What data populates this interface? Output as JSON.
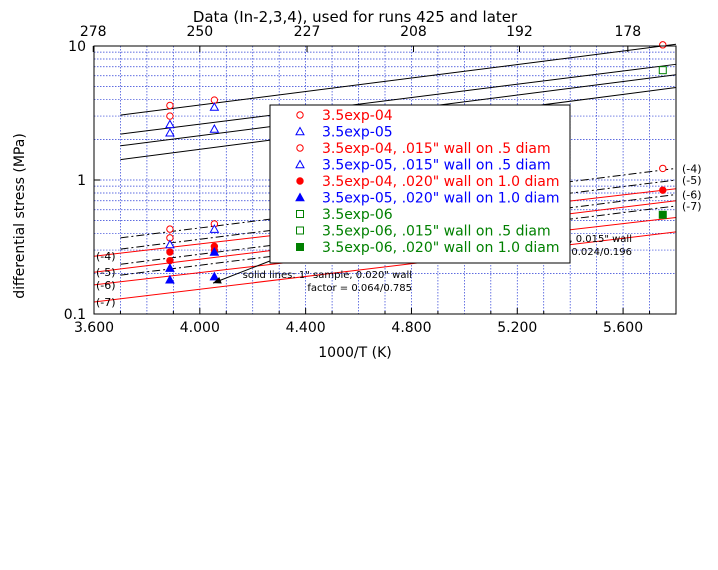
{
  "chart_data": {
    "type": "scatter",
    "title": "Data (In-2,3,4), used for runs 425 and later",
    "xlabel": "1000/T (K)",
    "ylabel": "differential stress (MPa)",
    "xlim": [
      3.6,
      5.8
    ],
    "ylim": [
      0.1,
      10
    ],
    "y_scale": "log",
    "x_ticks": [
      "3.600",
      "4.000",
      "4.400",
      "4.800",
      "5.200",
      "5.600"
    ],
    "x_tick_values": [
      3.6,
      4.0,
      4.4,
      4.8,
      5.2,
      5.6
    ],
    "y_ticks": [
      "0.1",
      "1",
      "10"
    ],
    "y_tick_values": [
      0.1,
      1,
      10
    ],
    "top_axis_ticks": [
      "278",
      "250",
      "227",
      "208",
      "192",
      "178"
    ],
    "grid": true,
    "legend_position": "top-center",
    "series": [
      {
        "name": "3.5exp-04",
        "marker": "circle-open",
        "color": "#ff0000",
        "points": [
          [
            3.887,
            3.6
          ],
          [
            4.055,
            3.95
          ],
          [
            5.75,
            10.2
          ]
        ]
      },
      {
        "name": "3.5exp-05",
        "marker": "triangle-open",
        "color": "#0000ff",
        "points": [
          [
            3.887,
            2.6
          ],
          [
            4.055,
            3.5
          ]
        ]
      },
      {
        "name": "3.5exp-04, .015\" wall on .5 diam",
        "marker": "circle-open",
        "color": "#ff0000",
        "points": [
          [
            3.887,
            3.0
          ],
          [
            3.887,
            0.43
          ],
          [
            3.887,
            0.37
          ],
          [
            4.055,
            0.47
          ],
          [
            5.75,
            1.22
          ]
        ]
      },
      {
        "name": "3.5exp-05, .015\" wall on .5 diam",
        "marker": "triangle-open",
        "color": "#0000ff",
        "points": [
          [
            3.887,
            2.25
          ],
          [
            4.055,
            2.4
          ],
          [
            3.887,
            0.33
          ],
          [
            4.055,
            0.43
          ]
        ]
      },
      {
        "name": "3.5exp-04, .020\" wall on 1.0 diam",
        "marker": "circle-filled",
        "color": "#ff0000",
        "points": [
          [
            3.887,
            0.29
          ],
          [
            3.887,
            0.25
          ],
          [
            4.055,
            0.32
          ],
          [
            4.055,
            0.3
          ],
          [
            5.75,
            0.84
          ]
        ]
      },
      {
        "name": "3.5exp-05, .020\" wall on 1.0 diam",
        "marker": "triangle-filled",
        "color": "#0000ff",
        "points": [
          [
            3.887,
            0.22
          ],
          [
            3.887,
            0.18
          ],
          [
            4.055,
            0.29
          ],
          [
            4.055,
            0.19
          ]
        ]
      },
      {
        "name": "3.5exp-06",
        "marker": "square-open",
        "color": "#008000",
        "points": [
          [
            5.75,
            6.6
          ]
        ]
      },
      {
        "name": "3.5exp-06, .015\" wall on .5 diam",
        "marker": "square-open",
        "color": "#008000",
        "points": []
      },
      {
        "name": "3.5exp-06, .020\" wall on 1.0 diam",
        "marker": "square-filled",
        "color": "#008000",
        "points": [
          [
            5.75,
            0.55
          ]
        ]
      }
    ],
    "lines": {
      "upper_solid": {
        "color": "#000000",
        "style": "solid",
        "segments": [
          [
            [
              3.7,
              3.05
            ],
            [
              5.8,
              10.3
            ]
          ],
          [
            [
              3.7,
              2.2
            ],
            [
              5.8,
              7.3
            ]
          ],
          [
            [
              3.7,
              1.8
            ],
            [
              5.8,
              6.1
            ]
          ],
          [
            [
              3.7,
              1.42
            ],
            [
              5.8,
              4.9
            ]
          ]
        ]
      },
      "dashed": {
        "color": "#000000",
        "style": "dashdot",
        "labels": [
          "(-4)",
          "(-5)",
          "(-6)",
          "(-7)"
        ],
        "segments": [
          [
            [
              3.7,
              0.37
            ],
            [
              5.8,
              1.22
            ]
          ],
          [
            [
              3.7,
              0.305
            ],
            [
              5.8,
              1.0
            ]
          ],
          [
            [
              3.7,
              0.235
            ],
            [
              5.8,
              0.78
            ]
          ],
          [
            [
              3.7,
              0.195
            ],
            [
              5.8,
              0.64
            ]
          ]
        ]
      },
      "solid_red": {
        "color": "#ff0000",
        "style": "solid",
        "labels": [
          "(-4)",
          "(-5)",
          "(-6)",
          "(-7)"
        ],
        "segments": [
          [
            [
              3.6,
              0.27
            ],
            [
              5.8,
              0.86
            ]
          ],
          [
            [
              3.6,
              0.205
            ],
            [
              5.8,
              0.7
            ]
          ],
          [
            [
              3.6,
              0.165
            ],
            [
              5.8,
              0.525
            ]
          ],
          [
            [
              3.6,
              0.123
            ],
            [
              5.8,
              0.41
            ]
          ]
        ]
      }
    },
    "annotations": [
      {
        "line1": "dashed lines: 0.5\" sample, 0.015\" wall",
        "line2": "factor = 0.024/0.196",
        "arrow_to": [
          4.86,
          0.44
        ]
      },
      {
        "line1": "solid lines: 1\" sample, 0.020\" wall",
        "line2": "factor = 0.064/0.785",
        "arrow_to": [
          4.05,
          0.17
        ]
      }
    ]
  }
}
